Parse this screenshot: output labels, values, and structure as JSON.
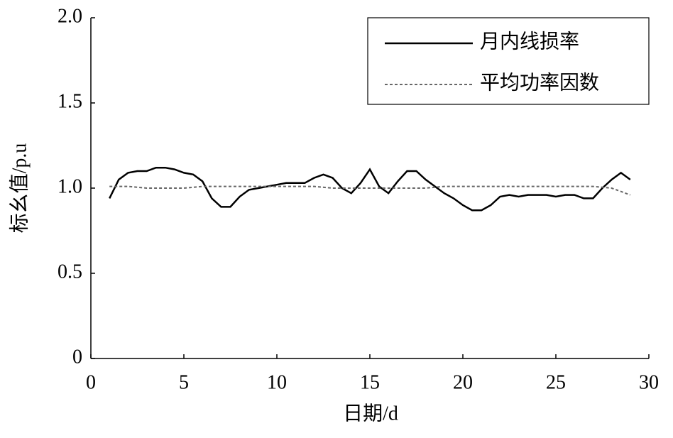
{
  "chart_data": {
    "type": "line",
    "xlabel": "日期/d",
    "ylabel": "标幺值/p.u",
    "xlim": [
      0,
      30
    ],
    "xticks": [
      0,
      5,
      10,
      15,
      20,
      25,
      30
    ],
    "ylim": [
      0,
      2
    ],
    "yticks": [
      0,
      0.5,
      {
        "value": 1,
        "label": "1.0"
      },
      1.5,
      {
        "value": 2,
        "label": "2.0"
      }
    ],
    "legend": "upper right",
    "series": [
      {
        "name": "月内线损率",
        "color": "#000000",
        "style": "solid",
        "x": [
          1,
          1.5,
          2,
          2.5,
          3,
          3.5,
          4,
          4.5,
          5,
          5.5,
          6,
          6.5,
          7,
          7.5,
          8,
          8.5,
          9,
          9.5,
          10,
          10.5,
          11,
          11.5,
          12,
          12.5,
          13,
          13.5,
          14,
          14.5,
          15,
          15.5,
          16,
          16.5,
          17,
          17.5,
          18,
          18.5,
          19,
          19.5,
          20,
          20.5,
          21,
          21.5,
          22,
          22.5,
          23,
          23.5,
          24,
          24.5,
          25,
          25.5,
          26,
          26.5,
          27,
          27.5,
          28,
          28.5,
          29
        ],
        "values": [
          0.94,
          1.05,
          1.09,
          1.1,
          1.1,
          1.12,
          1.12,
          1.11,
          1.09,
          1.08,
          1.04,
          0.94,
          0.89,
          0.89,
          0.95,
          0.99,
          1.0,
          1.01,
          1.02,
          1.03,
          1.03,
          1.03,
          1.06,
          1.08,
          1.06,
          1.0,
          0.97,
          1.03,
          1.11,
          1.01,
          0.97,
          1.04,
          1.1,
          1.1,
          1.05,
          1.01,
          0.97,
          0.94,
          0.9,
          0.87,
          0.87,
          0.9,
          0.95,
          0.96,
          0.95,
          0.96,
          0.96,
          0.96,
          0.95,
          0.96,
          0.96,
          0.94,
          0.94,
          1.0,
          1.05,
          1.09,
          1.05
        ]
      },
      {
        "name": "平均功率因数",
        "color": "#666666",
        "style": "dashed",
        "x": [
          1,
          2,
          3,
          4,
          5,
          6,
          7,
          8,
          9,
          10,
          11,
          12,
          13,
          14,
          15,
          16,
          17,
          18,
          19,
          20,
          21,
          22,
          23,
          24,
          25,
          26,
          27,
          28,
          29
        ],
        "values": [
          1.01,
          1.01,
          1.0,
          1.0,
          1.0,
          1.01,
          1.01,
          1.01,
          1.01,
          1.01,
          1.01,
          1.01,
          1.0,
          1.0,
          1.0,
          1.0,
          1.0,
          1.0,
          1.01,
          1.01,
          1.01,
          1.01,
          1.01,
          1.01,
          1.01,
          1.01,
          1.01,
          1.0,
          0.96
        ]
      }
    ]
  }
}
